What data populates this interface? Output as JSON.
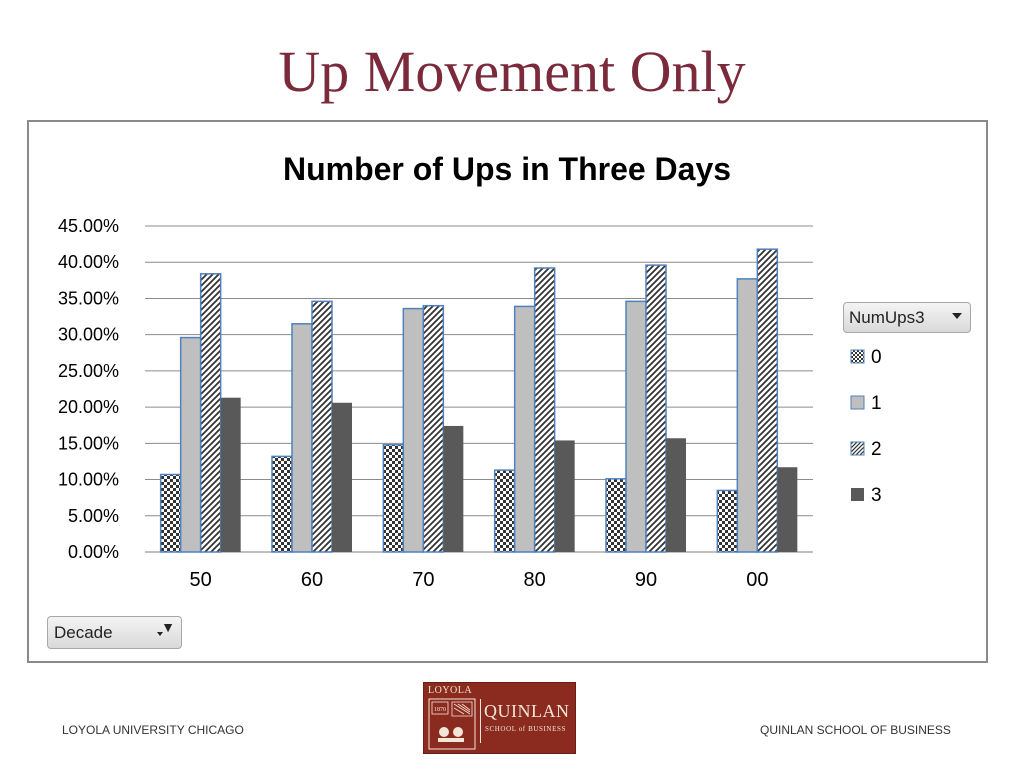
{
  "slide": {
    "title": "Up Movement Only"
  },
  "chart_data": {
    "type": "bar",
    "title": "Number of Ups in Three Days",
    "xlabel": "",
    "ylabel": "",
    "categories": [
      "50",
      "60",
      "70",
      "80",
      "90",
      "00"
    ],
    "ylim": [
      0,
      0.45
    ],
    "yticks": [
      "0.00%",
      "5.00%",
      "10.00%",
      "15.00%",
      "20.00%",
      "25.00%",
      "30.00%",
      "35.00%",
      "40.00%",
      "45.00%"
    ],
    "grid": true,
    "legend_placement": "right",
    "series": [
      {
        "name": "0",
        "pattern": "checker",
        "color": "#4f81bd",
        "values": [
          0.107,
          0.132,
          0.148,
          0.113,
          0.101,
          0.085
        ]
      },
      {
        "name": "1",
        "pattern": "solid-light",
        "color": "#bfbfbf",
        "values": [
          0.296,
          0.315,
          0.336,
          0.339,
          0.346,
          0.377
        ]
      },
      {
        "name": "2",
        "pattern": "diagonal",
        "color": "#4f81bd",
        "values": [
          0.384,
          0.346,
          0.34,
          0.392,
          0.396,
          0.418
        ]
      },
      {
        "name": "3",
        "pattern": "solid-dark",
        "color": "#595959",
        "values": [
          0.213,
          0.206,
          0.174,
          0.154,
          0.157,
          0.117
        ]
      }
    ]
  },
  "legend": {
    "field_label": "NumUps3"
  },
  "filter": {
    "field_label": "Decade"
  },
  "footer": {
    "left_text": "LOYOLA UNIVERSITY CHICAGO",
    "right_text": "QUINLAN SCHOOL OF BUSINESS"
  },
  "logo": {
    "top_text": "LOYOLA",
    "name": "QUINLAN",
    "subtitle": "SCHOOL of BUSINESS",
    "seal_year": "1870"
  },
  "colors": {
    "title": "#7a2a3a",
    "logo_bg": "#8b2b1f"
  }
}
